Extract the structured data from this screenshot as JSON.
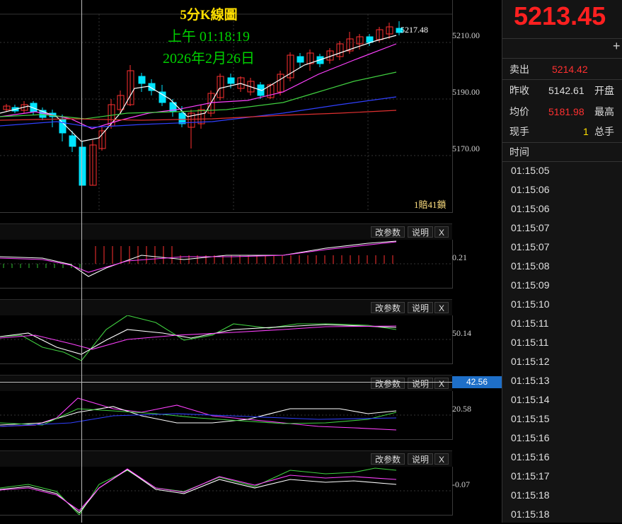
{
  "title": {
    "line1": "5分K線圖",
    "line2": "上午 01:18:19",
    "line3": "2026年2月26日"
  },
  "main_chart": {
    "last_label": "5217.48",
    "yticks": [
      "5210.00",
      "5190.00",
      "5170.00"
    ],
    "note": "1賠41鎖"
  },
  "panes": [
    {
      "value": "0.21",
      "btn_param": "改参数",
      "btn_help": "说明",
      "btn_close": "X"
    },
    {
      "value": "50.14",
      "btn_param": "改参数",
      "btn_help": "说明",
      "btn_close": "X"
    },
    {
      "value": "20.58",
      "btn_param": "改参数",
      "btn_help": "说明",
      "btn_close": "X"
    },
    {
      "value": "-0.07",
      "btn_param": "改参数",
      "btn_help": "说明",
      "btn_close": "X"
    }
  ],
  "crosshair_value": "42.56",
  "right_panel": {
    "price": "5213.45",
    "plus": "+",
    "sell_label": "卖出",
    "sell_value": "5214.42",
    "prev_close_label": "昨收",
    "prev_close_value": "5142.61",
    "open_label": "开盘",
    "avg_label": "均价",
    "avg_value": "5181.98",
    "high_label": "最高",
    "hand_label": "现手",
    "hand_value": "1",
    "total_label": "总手",
    "time_header": "时间",
    "times": [
      "01:15:05",
      "01:15:06",
      "01:15:06",
      "01:15:07",
      "01:15:07",
      "01:15:08",
      "01:15:09",
      "01:15:10",
      "01:15:11",
      "01:15:11",
      "01:15:12",
      "01:15:13",
      "01:15:14",
      "01:15:15",
      "01:15:16",
      "01:15:16",
      "01:15:17",
      "01:15:18",
      "01:15:18"
    ]
  },
  "colors": {
    "up": "#ff3030",
    "down": "#00e5ff",
    "ma1": "#ffffff",
    "ma2": "#ff40ff",
    "ma3": "#40d040",
    "ma4": "#3040ff",
    "ma5": "#e03030"
  }
}
